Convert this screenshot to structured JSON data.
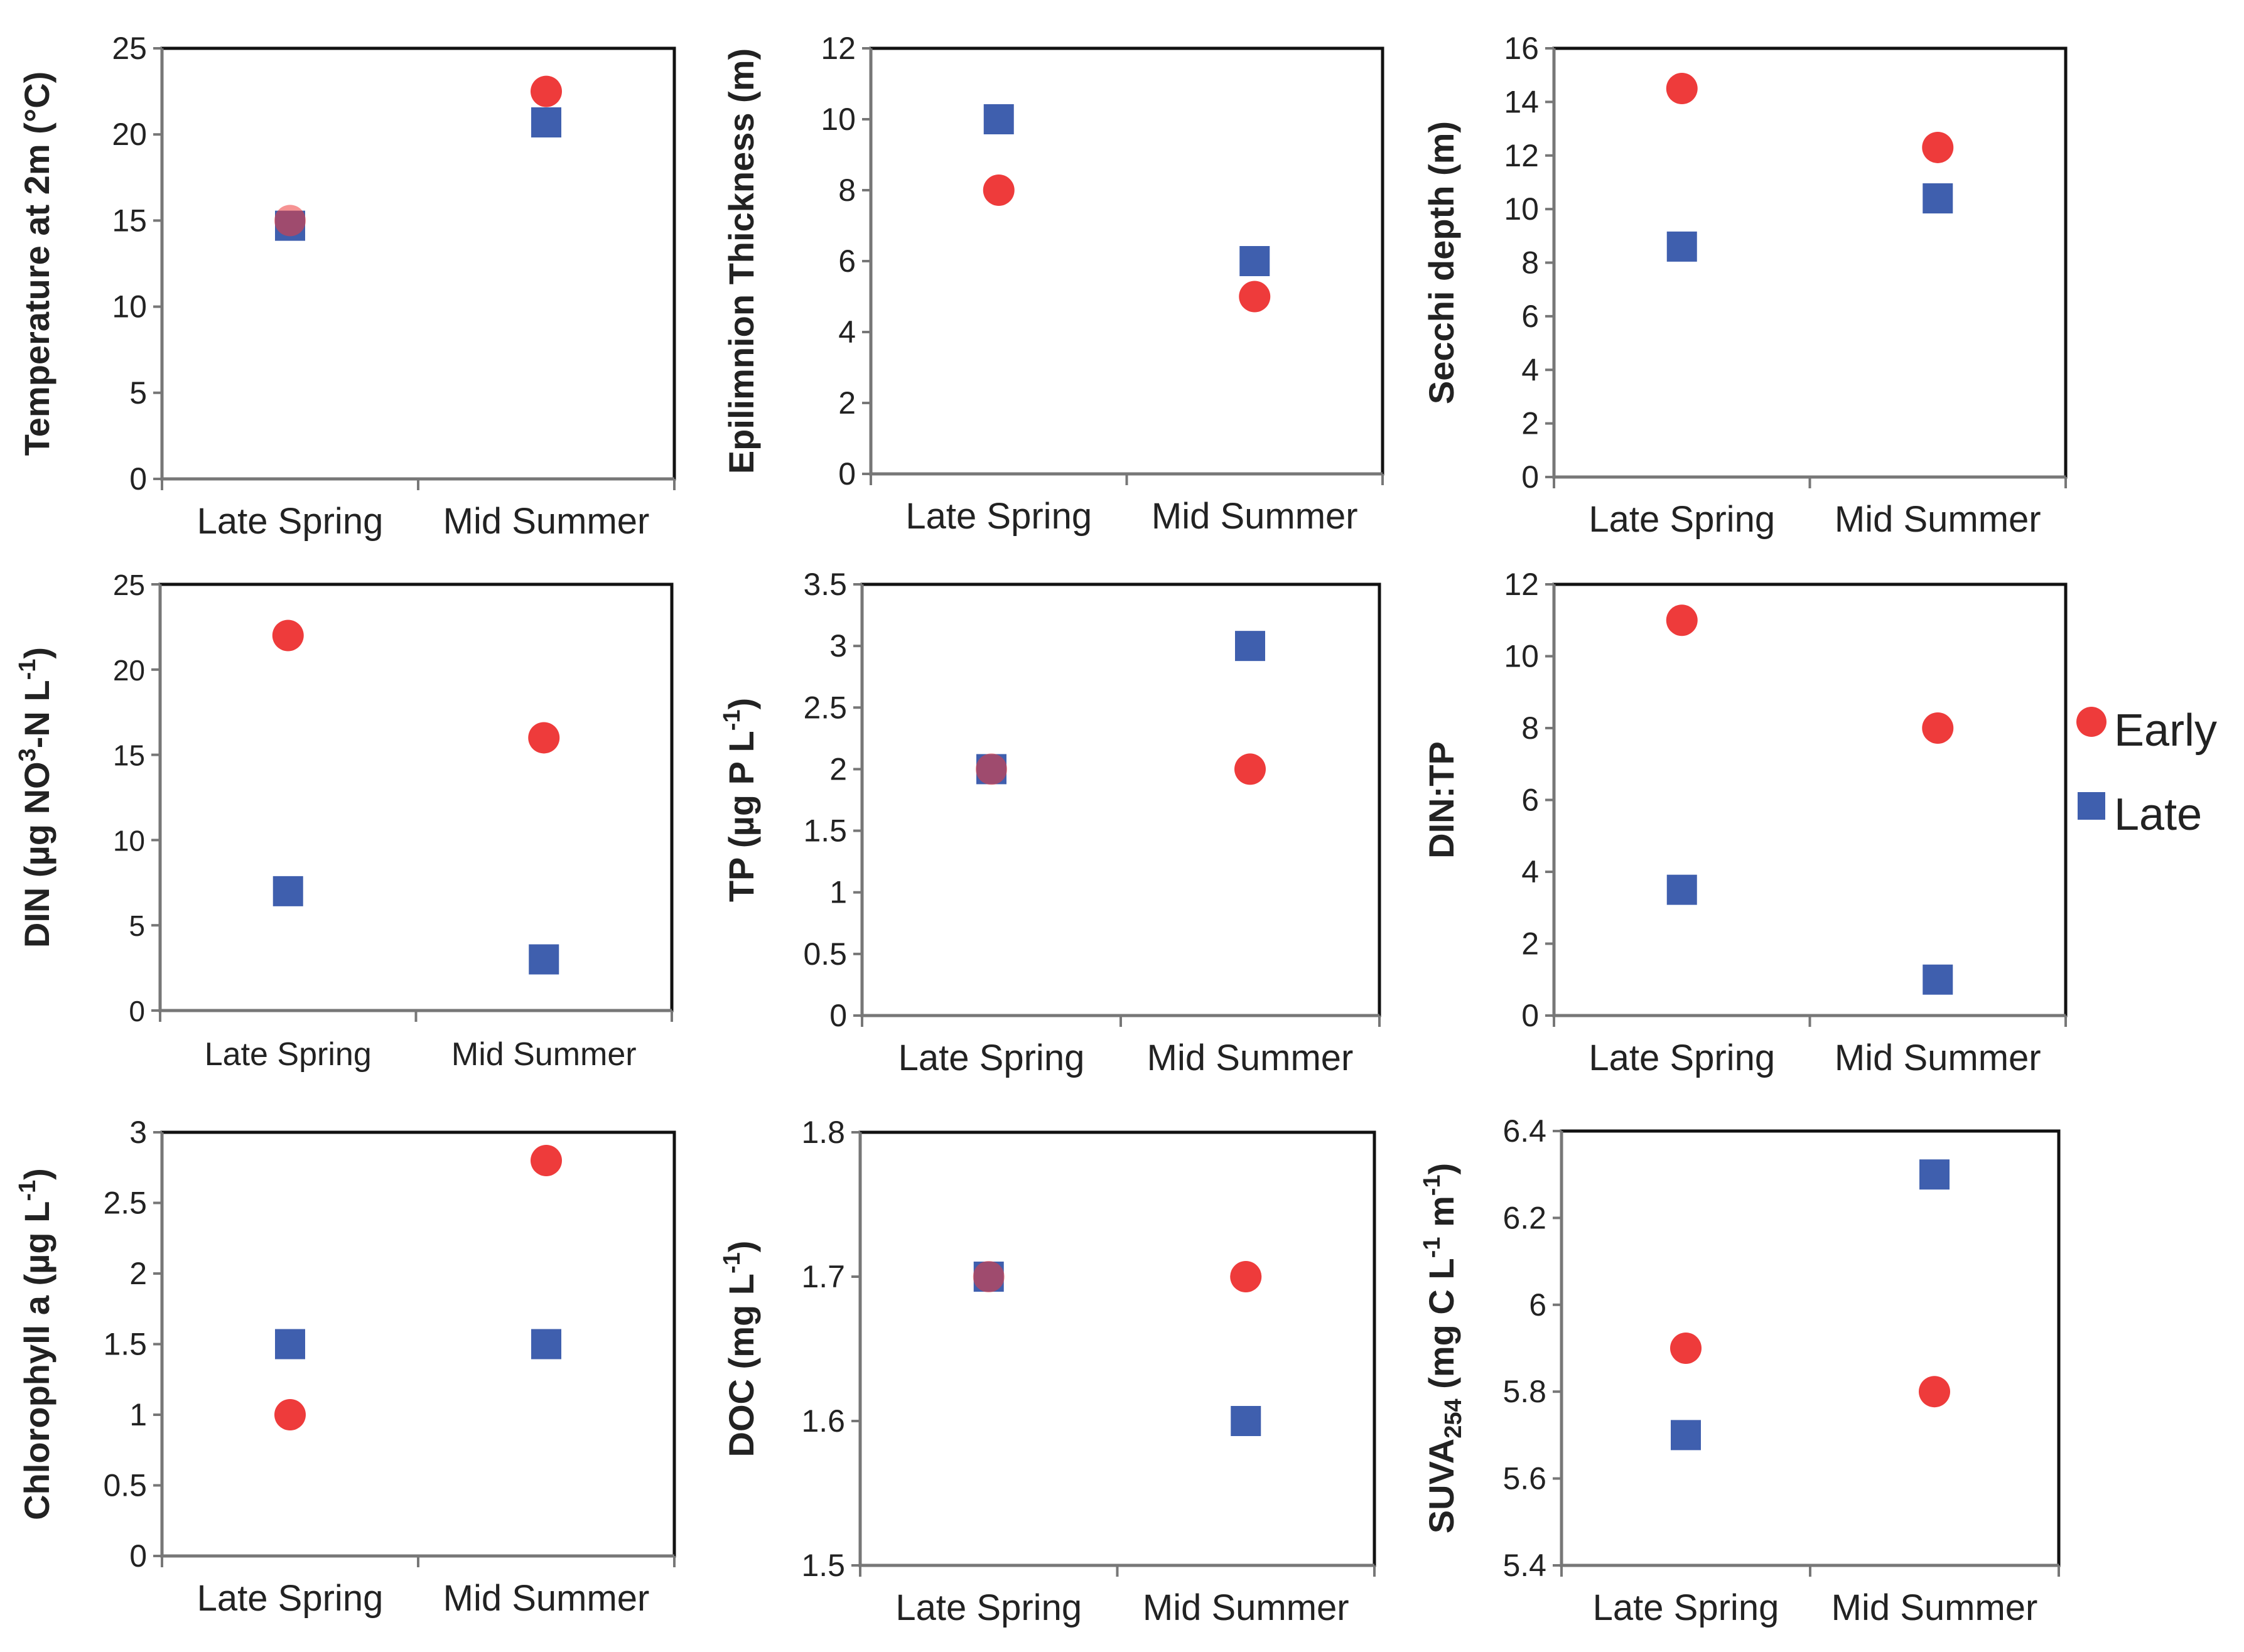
{
  "legend": {
    "items": [
      {
        "label": "Early",
        "color": "#ee3b3b",
        "marker": "circle"
      },
      {
        "label": "Late",
        "color": "#3f5fae",
        "marker": "square"
      }
    ]
  },
  "chart_data": [
    {
      "type": "scatter",
      "ylabel": "Temperature at 2m (°C)",
      "categories": [
        "Late Spring",
        "Mid Summer"
      ],
      "ylim": [
        0,
        25
      ],
      "yticks": [
        "0",
        "5",
        "10",
        "15",
        "20",
        "25"
      ],
      "series": [
        {
          "name": "Early",
          "values": [
            15,
            22.5
          ]
        },
        {
          "name": "Late",
          "values": [
            14.7,
            20.7
          ]
        }
      ]
    },
    {
      "type": "scatter",
      "ylabel": "Epilimnion Thickness (m)",
      "categories": [
        "Late Spring",
        "Mid Summer"
      ],
      "ylim": [
        0,
        12
      ],
      "yticks": [
        "0",
        "2",
        "4",
        "6",
        "8",
        "10",
        "12"
      ],
      "series": [
        {
          "name": "Early",
          "values": [
            8,
            5
          ]
        },
        {
          "name": "Late",
          "values": [
            10,
            6
          ]
        }
      ]
    },
    {
      "type": "scatter",
      "ylabel": "Secchi depth (m)",
      "categories": [
        "Late Spring",
        "Mid Summer"
      ],
      "ylim": [
        0,
        16
      ],
      "yticks": [
        "0",
        "2",
        "4",
        "6",
        "8",
        "10",
        "12",
        "14",
        "16"
      ],
      "series": [
        {
          "name": "Early",
          "values": [
            14.5,
            12.3
          ]
        },
        {
          "name": "Late",
          "values": [
            8.6,
            10.4
          ]
        }
      ]
    },
    {
      "type": "scatter",
      "ylabel": "DIN (µg NO3-N L-1)",
      "ylabel_parts": [
        "DIN (µg NO",
        "3",
        "-N L",
        "-1",
        ")"
      ],
      "categories": [
        "Late Spring",
        "Mid Summer"
      ],
      "ylim": [
        0,
        25
      ],
      "yticks": [
        "0",
        "5",
        "10",
        "15",
        "20",
        "25"
      ],
      "series": [
        {
          "name": "Early",
          "values": [
            22,
            16
          ]
        },
        {
          "name": "Late",
          "values": [
            7,
            3
          ]
        }
      ]
    },
    {
      "type": "scatter",
      "ylabel": "TP (µg P L-1)",
      "ylabel_parts": [
        "TP (µg P L",
        "-1",
        ")"
      ],
      "categories": [
        "Late Spring",
        "Mid Summer"
      ],
      "ylim": [
        0,
        3.5
      ],
      "yticks": [
        "0",
        "0.5",
        "1",
        "1.5",
        "2",
        "2.5",
        "3",
        "3.5"
      ],
      "series": [
        {
          "name": "Early",
          "values": [
            2,
            2
          ]
        },
        {
          "name": "Late",
          "values": [
            2,
            3
          ]
        }
      ]
    },
    {
      "type": "scatter",
      "ylabel": "DIN:TP",
      "categories": [
        "Late Spring",
        "Mid Summer"
      ],
      "ylim": [
        0,
        12
      ],
      "yticks": [
        "0",
        "2",
        "4",
        "6",
        "8",
        "10",
        "12"
      ],
      "series": [
        {
          "name": "Early",
          "values": [
            11,
            8
          ]
        },
        {
          "name": "Late",
          "values": [
            3.5,
            1
          ]
        }
      ]
    },
    {
      "type": "scatter",
      "ylabel": "Chlorophyll a (µg L-1)",
      "ylabel_parts": [
        "Chlorophyll a (µg L",
        "-1",
        ")"
      ],
      "categories": [
        "Late Spring",
        "Mid Summer"
      ],
      "ylim": [
        0,
        3
      ],
      "yticks": [
        "0",
        "0.5",
        "1",
        "1.5",
        "2",
        "2.5",
        "3"
      ],
      "series": [
        {
          "name": "Early",
          "values": [
            1,
            2.8
          ]
        },
        {
          "name": "Late",
          "values": [
            1.5,
            1.5
          ]
        }
      ]
    },
    {
      "type": "scatter",
      "ylabel": "DOC (mg L-1)",
      "ylabel_parts": [
        "DOC (mg L",
        "-1",
        ")"
      ],
      "categories": [
        "Late Spring",
        "Mid Summer"
      ],
      "ylim": [
        1.5,
        1.8
      ],
      "yticks": [
        "1.5",
        "1.6",
        "1.7",
        "1.8"
      ],
      "series": [
        {
          "name": "Early",
          "values": [
            1.7,
            1.7
          ]
        },
        {
          "name": "Late",
          "values": [
            1.7,
            1.6
          ]
        }
      ]
    },
    {
      "type": "scatter",
      "ylabel": "SUVA254 (mg C L-1 m-1)",
      "ylabel_parts": [
        "SUVA",
        "254",
        " (mg C L",
        "-1",
        " m",
        "-1",
        ")"
      ],
      "categories": [
        "Late Spring",
        "Mid Summer"
      ],
      "ylim": [
        5.4,
        6.4
      ],
      "yticks": [
        "5.4",
        "5.6",
        "5.8",
        "6",
        "6.2",
        "6.4"
      ],
      "series": [
        {
          "name": "Early",
          "values": [
            5.9,
            5.8
          ]
        },
        {
          "name": "Late",
          "values": [
            5.7,
            6.3
          ]
        }
      ]
    }
  ]
}
